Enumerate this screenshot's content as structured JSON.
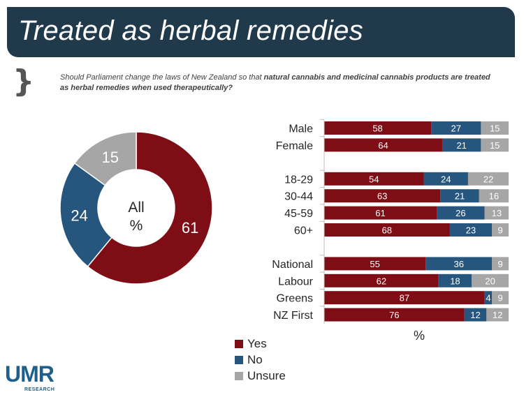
{
  "title": "Treated as herbal remedies",
  "question": {
    "prefix": "Should Parliament change the laws of New Zealand so that ",
    "bold": "natural cannabis and medicinal cannabis products are treated as herbal remedies when used therapeutically?",
    "suffix": ""
  },
  "colors": {
    "yes": "#7f0d15",
    "no": "#26567e",
    "unsure": "#a6a6a6",
    "header": "#203a4c"
  },
  "legend": [
    {
      "key": "yes",
      "label": "Yes"
    },
    {
      "key": "no",
      "label": "No"
    },
    {
      "key": "unsure",
      "label": "Unsure"
    }
  ],
  "logo": {
    "text": "UMR",
    "subtext": "RESEARCH"
  },
  "chart_data": [
    {
      "type": "pie",
      "donut": true,
      "center_label_line1": "All",
      "center_label_line2": "%",
      "categories": [
        "Yes",
        "No",
        "Unsure"
      ],
      "values": [
        61,
        24,
        15
      ]
    },
    {
      "type": "bar",
      "orientation": "horizontal",
      "stacked": true,
      "xlabel": "%",
      "xlim": [
        0,
        100
      ],
      "groups": [
        [
          "Male",
          "Female"
        ],
        [
          "18-29",
          "30-44",
          "45-59",
          "60+"
        ],
        [
          "National",
          "Labour",
          "Greens",
          "NZ First"
        ]
      ],
      "categories": [
        "Male",
        "Female",
        "18-29",
        "30-44",
        "45-59",
        "60+",
        "National",
        "Labour",
        "Greens",
        "NZ First"
      ],
      "series": [
        {
          "name": "Yes",
          "values": [
            58,
            64,
            54,
            63,
            61,
            68,
            55,
            62,
            87,
            76
          ]
        },
        {
          "name": "No",
          "values": [
            27,
            21,
            24,
            21,
            26,
            23,
            36,
            18,
            4,
            12
          ]
        },
        {
          "name": "Unsure",
          "values": [
            15,
            15,
            22,
            16,
            13,
            9,
            9,
            20,
            9,
            12
          ]
        }
      ]
    }
  ]
}
